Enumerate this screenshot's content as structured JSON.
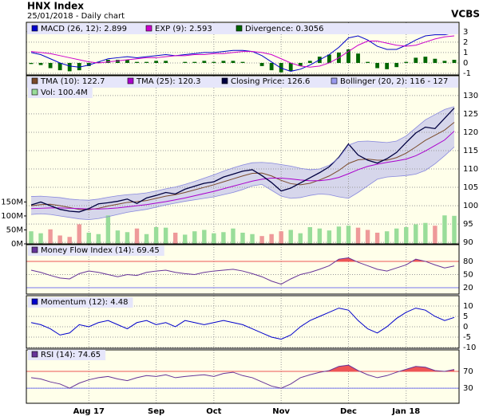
{
  "header": {
    "title": "HNX Index",
    "subtitle": "25/01/2018 - Daily chart",
    "source": "VCBS"
  },
  "chart_data": [
    {
      "type": "line",
      "ylim": [
        -1.15,
        3.9
      ],
      "yticks": [
        -1,
        0,
        1,
        2,
        3
      ],
      "grid": true,
      "series": [
        {
          "name": "MACD (26, 12): 2.899",
          "color": "#0000cc",
          "style": "line",
          "values": [
            1.0,
            0.8,
            0.4,
            0.0,
            -0.3,
            -0.4,
            -0.2,
            0.1,
            0.4,
            0.5,
            0.6,
            0.5,
            0.6,
            0.7,
            0.8,
            0.7,
            0.8,
            0.9,
            1.0,
            1.0,
            1.1,
            1.2,
            1.2,
            1.1,
            0.7,
            0.1,
            -0.5,
            -0.8,
            -0.6,
            -0.2,
            0.3,
            0.8,
            1.5,
            2.4,
            2.6,
            2.2,
            1.6,
            1.3,
            1.3,
            1.7,
            2.2,
            2.6,
            2.7,
            2.7,
            2.9
          ]
        },
        {
          "name": "EXP (9): 2.593",
          "color": "#cc00cc",
          "style": "line",
          "values": [
            1.1,
            1.0,
            0.9,
            0.7,
            0.5,
            0.3,
            0.1,
            0.0,
            0.1,
            0.2,
            0.3,
            0.4,
            0.5,
            0.5,
            0.6,
            0.7,
            0.7,
            0.8,
            0.8,
            0.9,
            0.9,
            1.0,
            1.1,
            1.1,
            1.0,
            0.8,
            0.4,
            0.0,
            -0.3,
            -0.4,
            -0.3,
            0.0,
            0.5,
            1.1,
            1.7,
            2.1,
            2.1,
            1.9,
            1.7,
            1.6,
            1.7,
            2.0,
            2.3,
            2.5,
            2.6
          ]
        },
        {
          "name": "Divergence: 0.3056",
          "color": "#006600",
          "style": "bar",
          "values": [
            -0.1,
            -0.2,
            -0.5,
            -0.7,
            -0.8,
            -0.7,
            -0.3,
            0.1,
            0.3,
            0.3,
            0.3,
            0.1,
            0.1,
            0.2,
            0.2,
            0.0,
            0.1,
            0.1,
            0.2,
            0.1,
            0.2,
            0.2,
            0.1,
            0.0,
            -0.3,
            -0.7,
            -0.9,
            -0.8,
            -0.3,
            0.2,
            0.6,
            0.8,
            1.0,
            1.3,
            0.9,
            0.1,
            -0.5,
            -0.6,
            -0.4,
            0.1,
            0.5,
            0.6,
            0.4,
            0.2,
            0.3
          ]
        }
      ]
    },
    {
      "type": "line",
      "ylim": [
        89.6,
        135.4
      ],
      "yticks": [
        90,
        95,
        100,
        105,
        110,
        115,
        120,
        125,
        130
      ],
      "grid": true,
      "y2lim": [
        0,
        602
      ],
      "y2ticks": [
        {
          "value": 0,
          "label": "0M"
        },
        {
          "value": 50,
          "label": "50M"
        },
        {
          "value": 100,
          "label": "100M"
        },
        {
          "value": 150,
          "label": "150M"
        }
      ],
      "series": [
        {
          "name": "TMA (10): 122.7",
          "color": "#7a4a2a",
          "style": "line",
          "values": [
            100.0,
            100.3,
            100.4,
            100.0,
            99.5,
            99.0,
            98.9,
            99.3,
            99.9,
            100.4,
            100.9,
            101.1,
            101.4,
            102.0,
            102.6,
            103.0,
            103.6,
            104.3,
            105.0,
            105.7,
            106.5,
            107.3,
            108.1,
            108.8,
            108.9,
            108.1,
            106.9,
            106.0,
            105.7,
            106.1,
            107.0,
            108.1,
            109.6,
            111.5,
            112.5,
            112.7,
            112.4,
            112.4,
            113.1,
            114.3,
            116.0,
            117.8,
            119.2,
            120.6,
            122.7
          ]
        },
        {
          "name": "TMA (25): 120.3",
          "color": "#aa00cc",
          "style": "line",
          "values": [
            99.2,
            99.3,
            99.4,
            99.4,
            99.3,
            99.2,
            99.1,
            99.1,
            99.2,
            99.4,
            99.7,
            100.0,
            100.3,
            100.7,
            101.1,
            101.6,
            102.1,
            102.7,
            103.3,
            103.9,
            104.6,
            105.3,
            106.0,
            106.7,
            107.2,
            107.5,
            107.5,
            107.3,
            107.0,
            106.8,
            106.8,
            107.1,
            107.7,
            108.7,
            109.8,
            110.7,
            111.3,
            111.8,
            112.2,
            112.7,
            113.6,
            114.9,
            116.4,
            117.9,
            120.3
          ]
        },
        {
          "name": "Closing Price: 126.6",
          "color": "#000040",
          "style": "line",
          "values": [
            100.2,
            101.0,
            100.0,
            99.0,
            98.5,
            98.3,
            99.2,
            100.5,
            100.8,
            101.2,
            101.8,
            100.6,
            102.1,
            102.8,
            103.6,
            103.2,
            104.5,
            105.3,
            106.1,
            106.5,
            107.8,
            108.6,
            109.4,
            109.8,
            108.2,
            106.3,
            104.0,
            104.8,
            106.2,
            107.6,
            109.0,
            110.6,
            113.2,
            116.8,
            113.8,
            112.4,
            111.6,
            112.8,
            114.5,
            117.2,
            119.8,
            121.4,
            121.0,
            123.8,
            126.6
          ]
        },
        {
          "name": "Bollinger (20, 2): 116 - 127",
          "color": "#9999ee",
          "style": "band",
          "upper": [
            102.5,
            102.6,
            102.4,
            102.2,
            101.8,
            101.6,
            101.5,
            101.8,
            102.3,
            102.7,
            103.0,
            103.2,
            103.5,
            104.0,
            104.6,
            105.1,
            105.8,
            106.6,
            107.5,
            108.4,
            109.4,
            110.3,
            111.1,
            111.7,
            111.8,
            111.6,
            111.2,
            110.8,
            110.2,
            109.8,
            110.0,
            111.0,
            113.0,
            116.5,
            117.5,
            117.6,
            117.4,
            117.2,
            117.6,
            119.0,
            121.2,
            123.4,
            124.8,
            126.2,
            127.0
          ],
          "lower": [
            97.6,
            97.8,
            97.6,
            97.2,
            96.8,
            96.4,
            96.2,
            96.5,
            97.0,
            97.6,
            98.2,
            98.6,
            99.0,
            99.6,
            100.2,
            100.7,
            101.2,
            101.6,
            102.0,
            102.4,
            103.0,
            103.6,
            104.4,
            105.4,
            105.8,
            104.2,
            102.6,
            102.0,
            102.2,
            102.8,
            103.2,
            103.0,
            102.4,
            102.0,
            103.6,
            105.4,
            107.2,
            107.8,
            108.0,
            108.2,
            108.6,
            109.6,
            111.4,
            113.6,
            116.0
          ]
        },
        {
          "name": "Vol: 100.4M",
          "color": "#99dd99",
          "down_color": "#ee9999",
          "style": "bar",
          "axis": "y2",
          "values": [
            45,
            38,
            52,
            30,
            25,
            70,
            40,
            35,
            102,
            48,
            42,
            55,
            35,
            60,
            58,
            40,
            33,
            45,
            50,
            38,
            42,
            55,
            40,
            35,
            28,
            35,
            45,
            50,
            38,
            60,
            55,
            48,
            62,
            65,
            58,
            50,
            40,
            45,
            55,
            60,
            70,
            75,
            65,
            102,
            100.4
          ]
        }
      ]
    },
    {
      "type": "line",
      "ylim": [
        5.5,
        118
      ],
      "yticks": [
        20,
        50,
        80
      ],
      "grid": true,
      "overbought": 80,
      "oversold": 20,
      "overbought_color": "#ee5555",
      "oversold_color": "#7777ee",
      "series": [
        {
          "name": "Money Flow Index (14): 69.45",
          "color": "#663399",
          "style": "line",
          "values": [
            60,
            55,
            48,
            42,
            40,
            52,
            58,
            55,
            50,
            45,
            50,
            48,
            55,
            58,
            60,
            55,
            52,
            50,
            55,
            58,
            60,
            62,
            58,
            52,
            45,
            35,
            28,
            40,
            50,
            55,
            62,
            70,
            85,
            88,
            78,
            70,
            62,
            58,
            65,
            72,
            85,
            80,
            72,
            65,
            69.45
          ]
        }
      ]
    },
    {
      "type": "line",
      "ylim": [
        -10.4,
        15
      ],
      "yticks": [
        -10,
        -5,
        0,
        5,
        10
      ],
      "grid": true,
      "series": [
        {
          "name": "Momentum (12): 4.48",
          "color": "#0000cc",
          "style": "line",
          "values": [
            2,
            1,
            -1,
            -4,
            -3,
            1,
            0,
            2,
            3,
            1,
            -1,
            2,
            3,
            1,
            2,
            0,
            3,
            2,
            1,
            2,
            3,
            2,
            1,
            -1,
            -3,
            -5,
            -6,
            -4,
            0,
            3,
            5,
            7,
            9,
            8,
            3,
            -1,
            -3,
            0,
            4,
            7,
            9,
            8,
            5,
            3,
            4.48
          ]
        }
      ]
    },
    {
      "type": "line",
      "ylim": [
        -6,
        121.4
      ],
      "yticks": [
        30,
        70
      ],
      "grid": true,
      "overbought": 70,
      "oversold": 30,
      "overbought_color": "#ee5555",
      "oversold_color": "#7777ee",
      "categories": [
        null,
        null,
        null,
        null,
        null,
        null,
        "Aug 17",
        null,
        null,
        null,
        null,
        null,
        null,
        "Sep",
        null,
        null,
        null,
        null,
        null,
        "Oct",
        null,
        null,
        null,
        null,
        null,
        null,
        "Nov",
        null,
        null,
        null,
        null,
        null,
        null,
        "Dec",
        null,
        null,
        null,
        null,
        null,
        "Jan 18",
        null,
        null,
        null,
        null,
        null
      ],
      "series": [
        {
          "name": "RSI (14): 74.65",
          "color": "#663399",
          "style": "line",
          "values": [
            55,
            52,
            45,
            40,
            30,
            42,
            50,
            55,
            58,
            52,
            48,
            55,
            60,
            58,
            62,
            55,
            58,
            60,
            62,
            58,
            65,
            68,
            60,
            55,
            45,
            35,
            30,
            40,
            55,
            62,
            68,
            72,
            82,
            85,
            72,
            62,
            55,
            60,
            68,
            75,
            82,
            80,
            72,
            70,
            74.65
          ]
        }
      ]
    }
  ]
}
